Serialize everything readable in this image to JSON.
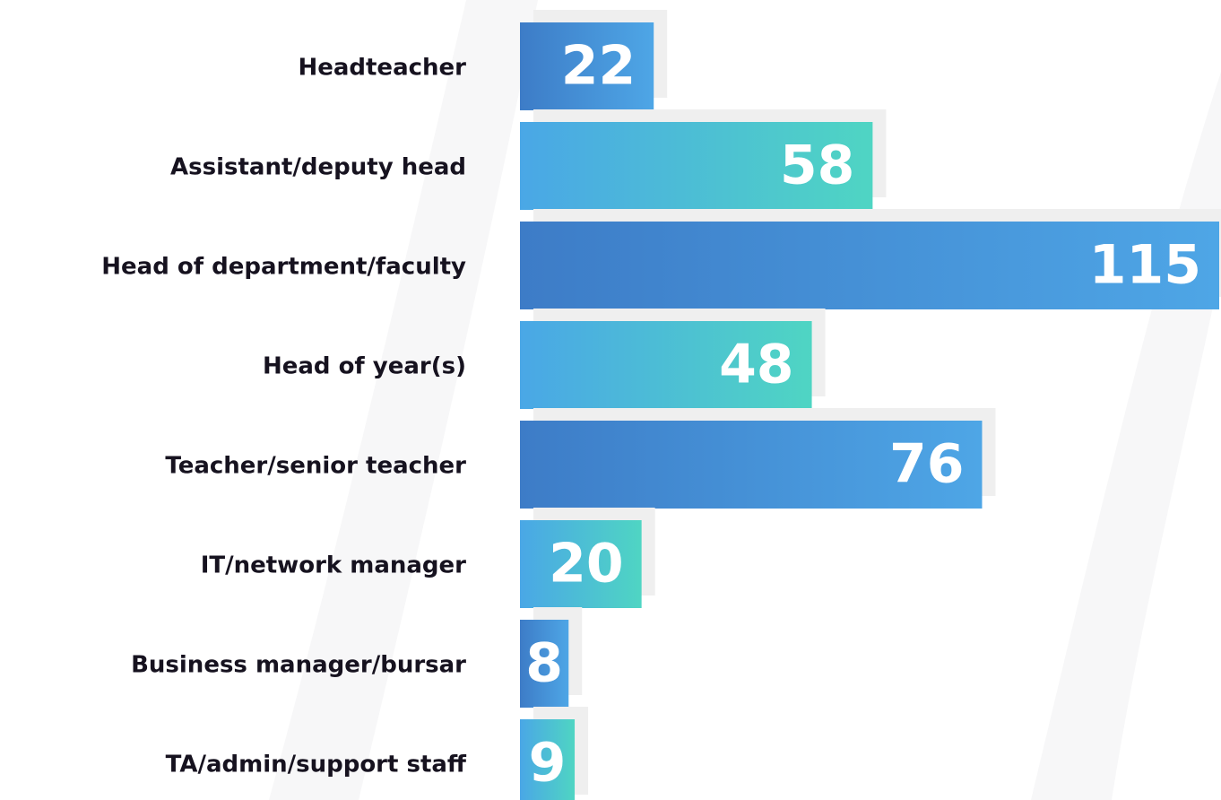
{
  "chart_data": {
    "type": "bar",
    "orientation": "horizontal",
    "categories": [
      "Headteacher",
      "Assistant/deputy head",
      "Head of department/faculty",
      "Head of year(s)",
      "Teacher/senior teacher",
      "IT/network manager",
      "Business manager/bursar",
      "TA/admin/support staff"
    ],
    "values": [
      22,
      58,
      115,
      48,
      76,
      20,
      8,
      9
    ],
    "bar_colors": [
      [
        "#3d7cc7",
        "#4ea6e6"
      ],
      [
        "#4aa7e6",
        "#4fd5c3"
      ]
    ],
    "shadow_color": "#efefef",
    "value_label_color": "#ffffff"
  }
}
